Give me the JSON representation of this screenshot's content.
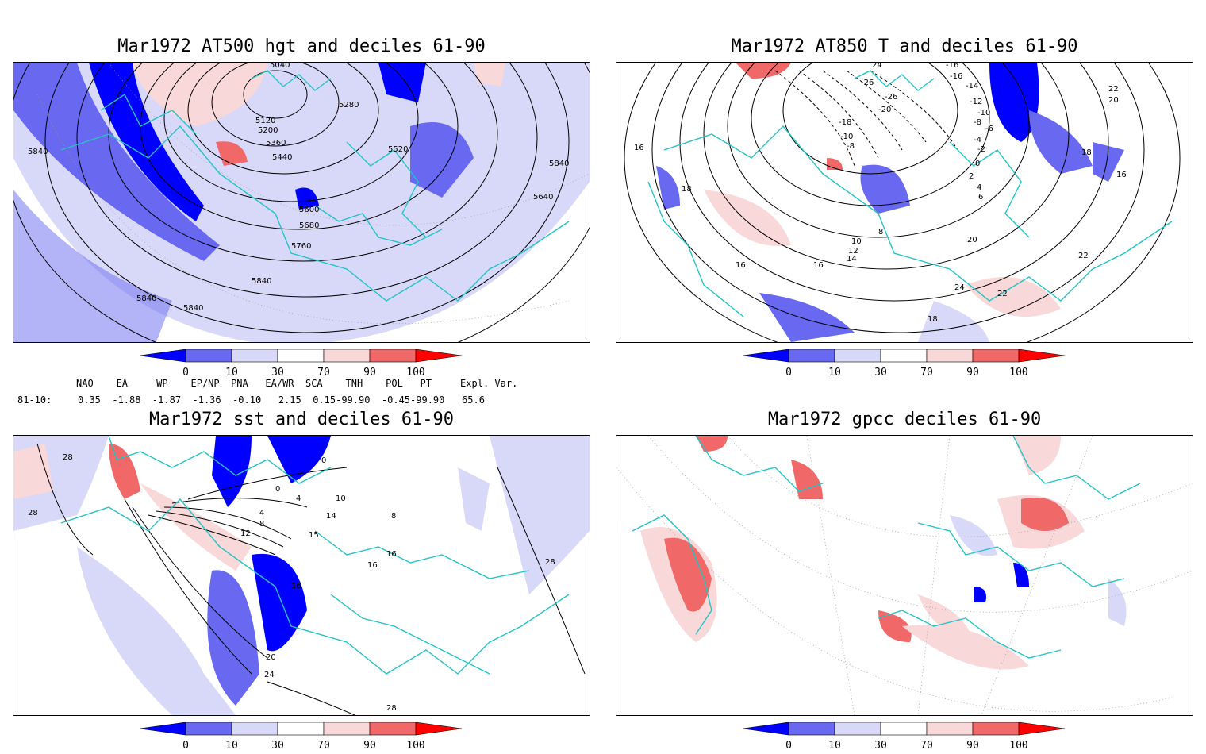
{
  "panels": {
    "z500": {
      "title": "Mar1972 AT500 hgt and deciles 61-90",
      "contour_labels": [
        "5040",
        "5120",
        "5200",
        "5280",
        "5360",
        "5440",
        "5520",
        "5600",
        "5680",
        "5760",
        "5840",
        "5840",
        "5840",
        "5840",
        "5840",
        "5640"
      ]
    },
    "t850": {
      "title": "Mar1972 AT850 T and deciles 61-90",
      "contour_labels": [
        "24",
        "-16",
        "-16",
        "-14",
        "-12",
        "-10",
        "-8",
        "-6",
        "-4",
        "-2",
        "0",
        "2",
        "4",
        "6",
        "8",
        "10",
        "12",
        "14",
        "16",
        "16",
        "16",
        "18",
        "18",
        "18",
        "20",
        "20",
        "22",
        "22",
        "22",
        "24",
        "-26",
        "-26",
        "-18",
        "-20",
        "-10",
        "-8",
        "16"
      ]
    },
    "sst": {
      "title": "Mar1972 sst and deciles 61-90",
      "contour_labels": [
        "28",
        "28",
        "0",
        "0",
        "4",
        "4",
        "8",
        "10",
        "12",
        "14",
        "15",
        "16",
        "16",
        "16",
        "20",
        "24",
        "28",
        "28",
        "8"
      ]
    },
    "gpcc": {
      "title": "Mar1972 gpcc deciles 61-90"
    }
  },
  "colorbar": {
    "ticks": [
      "0",
      "10",
      "30",
      "70",
      "90",
      "100"
    ],
    "colors": [
      "#0000ff",
      "#6868f0",
      "#d8d8f8",
      "#ffffff",
      "#f8d8d8",
      "#f06868",
      "#ff0000"
    ]
  },
  "indices": {
    "header": "NAO    EA     WP    EP/NP  PNA   EA/WR  SCA    TNH    POL   PT     Expl. Var.",
    "row_label": "81-10:",
    "row_values": "0.35  -1.88  -1.87  -1.36  -0.10   2.15  0.15-99.90  -0.45-99.90   65.6"
  },
  "colors": {
    "coastline": "#22c4c4",
    "contour": "#000000"
  }
}
